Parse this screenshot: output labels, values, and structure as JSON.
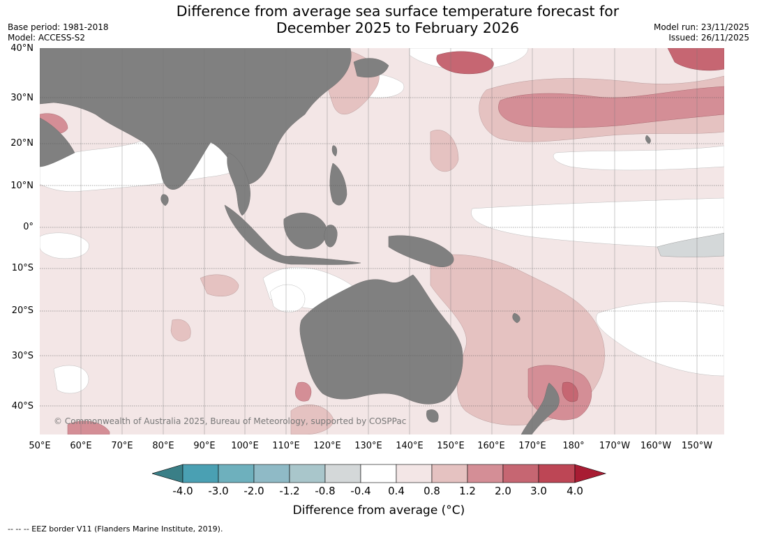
{
  "title": {
    "line1": "Difference from average sea surface temperature forecast for",
    "line2": "December 2025 to February 2026"
  },
  "meta_left": {
    "base_period": "Base period: 1981-2018",
    "model": "Model: ACCESS-S2"
  },
  "meta_right": {
    "model_run": "Model run: 23/11/2025",
    "issued": "Issued: 26/11/2025"
  },
  "lat_labels": [
    "40°N",
    "30°N",
    "20°N",
    "10°N",
    "0°",
    "10°S",
    "20°S",
    "30°S",
    "40°S"
  ],
  "lon_labels": [
    "50°E",
    "60°E",
    "70°E",
    "80°E",
    "90°E",
    "100°E",
    "110°E",
    "120°E",
    "130°E",
    "140°E",
    "150°E",
    "160°E",
    "170°E",
    "180°",
    "170°W",
    "160°W",
    "150°W"
  ],
  "copyright": "© Commonwealth of Australia 2025, Bureau of Meteorology, supported by COSPPac",
  "colorbar": {
    "labels": [
      "-4.0",
      "-3.0",
      "-2.0",
      "-1.2",
      "-0.8",
      "-0.4",
      "0.4",
      "0.8",
      "1.2",
      "2.0",
      "3.0",
      "4.0"
    ],
    "colors": [
      "#3a7f87",
      "#4aa0b3",
      "#6eb0bd",
      "#8fbac6",
      "#a9c6cb",
      "#d4d8d9",
      "#ffffff",
      "#f3e6e6",
      "#e5c2c1",
      "#d48e96",
      "#c66672",
      "#bd4655",
      "#a81c33"
    ],
    "title": "Difference from average (°C)"
  },
  "colors": {
    "land": "#808080",
    "ocean_default": "#f3e6e6"
  },
  "footer": "--  --  -- EEZ border V11 (Flanders Marine Institute, 2019)."
}
